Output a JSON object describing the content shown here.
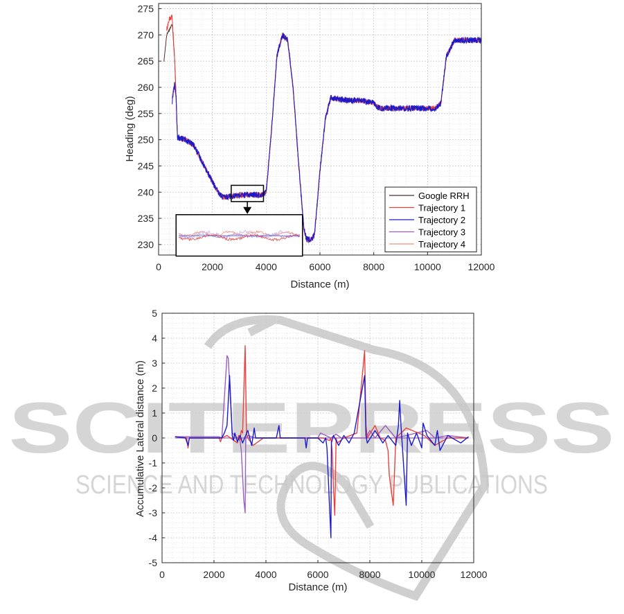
{
  "watermark": {
    "main": "SCITEPRESS",
    "sub": "SCIENCE AND TECHNOLOGY PUBLICATIONS",
    "color": "#bfbfbf"
  },
  "chart_data": [
    {
      "type": "line",
      "title": "",
      "xlabel": "Distance (m)",
      "ylabel": "Heading (deg)",
      "xlim": [
        0,
        12000
      ],
      "ylim": [
        228,
        276
      ],
      "xticks": [
        0,
        2000,
        4000,
        6000,
        8000,
        10000,
        12000
      ],
      "yticks": [
        230,
        235,
        240,
        245,
        250,
        255,
        260,
        265,
        270,
        275
      ],
      "grid": true,
      "legend_position": "bottom-right",
      "series": [
        {
          "name": "Google RRH",
          "color": "#4d2f2f",
          "noise": 0.2,
          "x": [
            200,
            300,
            500,
            520,
            600,
            650,
            700,
            800,
            1000,
            1300,
            1600,
            1900,
            2200,
            2400,
            2600,
            3000,
            3400,
            3800,
            4000,
            4200,
            4400,
            4600,
            4800,
            5000,
            5200,
            5400,
            5500,
            5700,
            5800,
            6000,
            6200,
            6400,
            7000,
            7500,
            8000,
            8200,
            9000,
            10000,
            10300,
            10500,
            10700,
            11000,
            11500,
            12000
          ],
          "y": [
            265,
            270,
            272,
            271.5,
            265,
            258,
            250.5,
            250.3,
            250,
            249,
            246,
            243,
            240,
            239,
            239.2,
            239.4,
            239.5,
            239.5,
            240,
            252,
            266,
            270,
            269,
            260,
            246,
            233,
            231,
            231,
            232,
            244,
            254,
            258,
            257.5,
            257.5,
            257,
            256,
            256,
            256,
            256,
            257,
            266,
            269,
            269,
            269
          ]
        },
        {
          "name": "Trajectory 1",
          "color": "#e8413c",
          "noise": 0.5,
          "x": [
            300,
            400,
            500,
            520,
            600,
            650,
            700,
            800,
            1000,
            1300,
            1600,
            1900,
            2200,
            2400,
            2600,
            3000,
            3400,
            3800,
            4000,
            4200,
            4400,
            4600,
            4800,
            5000,
            5200,
            5400,
            5500,
            5700,
            5800,
            6000,
            6200,
            6400,
            7000,
            7500,
            8000,
            8200,
            9000,
            10000,
            10300,
            10500,
            10700,
            11000,
            11500,
            12000
          ],
          "y": [
            271,
            273,
            273.5,
            272,
            265,
            258,
            250.5,
            250.3,
            250,
            249,
            246,
            243,
            240,
            239,
            239.2,
            239.4,
            239.5,
            239.5,
            240,
            252,
            266,
            270,
            269,
            260,
            246,
            233,
            231,
            231,
            232,
            244,
            254,
            258,
            257.5,
            257.5,
            257,
            256,
            256,
            256,
            256,
            257,
            266,
            269,
            269,
            269
          ]
        },
        {
          "name": "Trajectory 2",
          "color": "#1a1acc",
          "noise": 0.6,
          "x": [
            500,
            550,
            600,
            650,
            700,
            800,
            1000,
            1300,
            1600,
            1900,
            2200,
            2400,
            2600,
            3000,
            3400,
            3800,
            4000,
            4200,
            4400,
            4600,
            4800,
            5000,
            5200,
            5400,
            5500,
            5700,
            5800,
            6000,
            6200,
            6400,
            7000,
            7500,
            8000,
            8200,
            9000,
            10000,
            10300,
            10500,
            10700,
            11000,
            11500,
            12000
          ],
          "y": [
            257,
            259,
            261,
            258,
            250.5,
            250.3,
            250,
            249,
            246,
            243,
            240,
            239,
            239.2,
            239.4,
            239.5,
            239.5,
            240,
            252,
            266,
            270,
            269,
            260,
            246,
            233,
            231,
            231,
            232,
            244,
            254,
            258,
            257.5,
            257.5,
            257,
            256,
            256,
            256,
            256,
            257,
            266,
            269,
            269,
            269
          ]
        },
        {
          "name": "Trajectory 3",
          "color": "#9b5fc0",
          "noise": 0.4,
          "x": [
            500,
            550,
            600,
            650,
            700,
            800,
            1000,
            1300,
            1600,
            1900,
            2200,
            2400,
            2600,
            3000,
            3400,
            3800,
            4000,
            4200,
            4400,
            4600,
            4800,
            5000,
            5200,
            5400,
            5500,
            5700,
            5800,
            6000,
            6200,
            6400,
            7000,
            7500,
            8000,
            8200,
            9000,
            10000,
            10300,
            10500,
            10700,
            11000,
            11500,
            12000
          ],
          "y": [
            258,
            259.5,
            260,
            258,
            250.5,
            250.3,
            250,
            249,
            246,
            243,
            240,
            239,
            239.2,
            239.4,
            239.5,
            239.5,
            240,
            252,
            266,
            270,
            269,
            260,
            246,
            233,
            231,
            231,
            232,
            244,
            254,
            258,
            257.5,
            257.5,
            257,
            256,
            256,
            256,
            256,
            257,
            266,
            269,
            269,
            269
          ]
        },
        {
          "name": "Trajectory 4",
          "color": "#f08a7a",
          "noise": 0.4,
          "x": [
            500,
            550,
            600,
            650,
            700,
            800,
            1000,
            1300,
            1600,
            1900,
            2200,
            2400,
            2600,
            3000,
            3400,
            3800,
            4000,
            4200,
            4400,
            4600,
            4800,
            5000,
            5200,
            5400,
            5500,
            5700,
            5800,
            6000,
            6200,
            6400,
            7000,
            7500,
            8000,
            8200,
            9000,
            10000,
            10300,
            10500,
            10700,
            11000,
            11500,
            12000
          ],
          "y": [
            258,
            259.5,
            260,
            258,
            250.5,
            250.3,
            250,
            249,
            246,
            243,
            240,
            239,
            239.2,
            239.4,
            239.5,
            239.5,
            240,
            252,
            266,
            270,
            269,
            260,
            246,
            233,
            231,
            231,
            232,
            244,
            254,
            258,
            257.5,
            257.5,
            257,
            256,
            256,
            256,
            256,
            257,
            266,
            269,
            269,
            269
          ]
        }
      ],
      "annotations": [
        {
          "type": "zoom-box",
          "x_range": [
            2700,
            3900
          ],
          "y_range": [
            238.2,
            241.3
          ]
        },
        {
          "type": "zoom-arrow"
        },
        {
          "type": "inset",
          "x_range": [
            650,
            5350
          ],
          "y_range": [
            227.8,
            235.7
          ],
          "description_series": [
            "Trajectory 1",
            "Trajectory 2",
            "Trajectory 3",
            "Trajectory 4"
          ]
        }
      ]
    },
    {
      "type": "line",
      "title": "",
      "xlabel": "Distance (m)",
      "ylabel": "Accumulative Lateral distance (m)",
      "xlim": [
        0,
        12000
      ],
      "ylim": [
        -5,
        5
      ],
      "xticks": [
        0,
        2000,
        4000,
        6000,
        8000,
        10000,
        12000
      ],
      "yticks": [
        -5,
        -4,
        -3,
        -2,
        -1,
        0,
        1,
        2,
        3,
        4,
        5
      ],
      "grid": true,
      "series": [
        {
          "name": "",
          "color": "#9b5fc0",
          "x": [
            500,
            2200,
            2300,
            2500,
            2550,
            2700,
            2900,
            3000,
            3050,
            3150,
            3200,
            3220,
            3300,
            3600,
            6000,
            6100,
            6500,
            6700,
            6900,
            7100,
            7600,
            7800,
            7850,
            8000,
            8200,
            8600,
            9000,
            10200,
            10500,
            11000,
            11800
          ],
          "y": [
            0.05,
            0.05,
            0,
            3.3,
            3.2,
            0.2,
            0,
            -0.1,
            -0.5,
            -2.5,
            -3.0,
            0,
            0.1,
            0,
            0,
            0.2,
            0,
            0.15,
            0,
            0,
            0,
            0,
            0,
            0.3,
            0,
            0.5,
            0,
            0.3,
            0,
            0.1,
            0
          ]
        },
        {
          "name": "",
          "color": "#e8413c",
          "x": [
            500,
            950,
            1000,
            1050,
            2200,
            2250,
            2300,
            2500,
            2900,
            2950,
            3000,
            3050,
            3100,
            3200,
            3250,
            3300,
            3500,
            3900,
            4500,
            5500,
            6200,
            6450,
            6500,
            6550,
            6600,
            6650,
            6700,
            6750,
            7000,
            7500,
            7800,
            7850,
            7900,
            8200,
            8400,
            8600,
            8700,
            8750,
            8900,
            9000,
            9400,
            10100,
            10500,
            11000,
            11800
          ],
          "y": [
            0.05,
            0,
            -0.4,
            0,
            0,
            -0.15,
            0,
            0.1,
            -0.2,
            0.1,
            -0.1,
            0.3,
            0.2,
            3.7,
            0.2,
            0,
            -0.3,
            0,
            0,
            0,
            0,
            -0.1,
            0,
            -0.5,
            -2.0,
            -3.1,
            0,
            -0.2,
            0,
            0.2,
            3.5,
            0.5,
            0,
            0.5,
            0,
            -0.1,
            -0.5,
            -1.5,
            -2.7,
            0,
            0.4,
            0.1,
            -0.3,
            0,
            0
          ]
        },
        {
          "name": "",
          "color": "#1a1acc",
          "x": [
            500,
            900,
            1000,
            1050,
            2300,
            2400,
            2500,
            2600,
            2700,
            2750,
            2800,
            2900,
            3000,
            3100,
            3300,
            3450,
            3550,
            3600,
            4400,
            4500,
            4550,
            5500,
            5550,
            5600,
            6000,
            6200,
            6300,
            6350,
            6500,
            6520,
            6600,
            6800,
            7000,
            7200,
            7400,
            7800,
            7850,
            7900,
            8200,
            8500,
            8700,
            9000,
            9100,
            9150,
            9200,
            9400,
            9450,
            9600,
            9800,
            10000,
            10050,
            10200,
            10500,
            10600,
            10700,
            11000,
            11500,
            11800
          ],
          "y": [
            0.05,
            0,
            -0.3,
            0,
            0,
            0.2,
            0.5,
            2.5,
            0.1,
            -0.1,
            0.2,
            -0.15,
            0.1,
            -0.2,
            0.3,
            -0.3,
            0.4,
            0,
            0,
            0.5,
            0,
            0,
            -0.4,
            0,
            0,
            -0.2,
            0,
            -0.4,
            -4.0,
            -0.2,
            0.1,
            -0.3,
            0.1,
            -0.2,
            0.2,
            2.5,
            0.1,
            -0.2,
            0.3,
            -0.2,
            0.1,
            -0.3,
            0.5,
            1.5,
            0.5,
            -2.7,
            0.2,
            -0.3,
            0.2,
            -0.4,
            0.6,
            0.1,
            -0.3,
            0.3,
            -0.5,
            0.1,
            -0.2,
            0.05
          ]
        }
      ]
    }
  ]
}
